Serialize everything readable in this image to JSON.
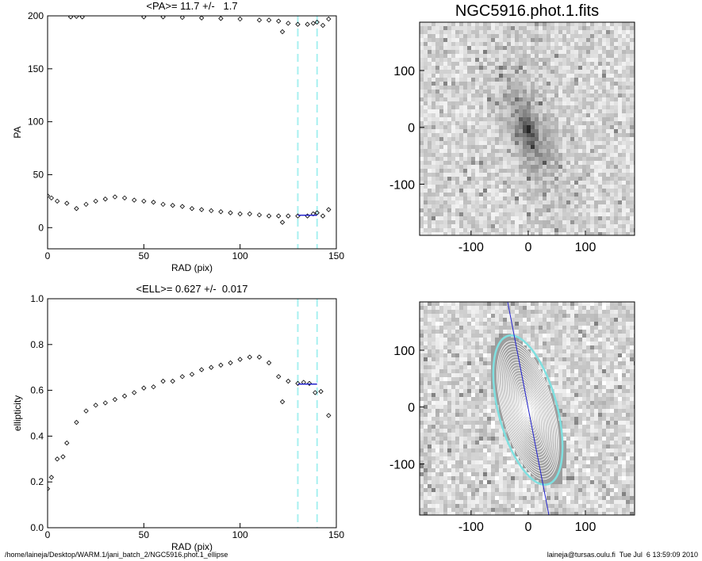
{
  "chart_data": [
    {
      "type": "scatter",
      "title": "<PA>= 11.7 +/-   1.7",
      "xlabel": "RAD (pix)",
      "ylabel": "PA",
      "x": [
        0,
        2,
        5,
        10,
        15,
        20,
        25,
        30,
        35,
        40,
        45,
        50,
        55,
        60,
        65,
        70,
        75,
        80,
        85,
        90,
        95,
        100,
        105,
        110,
        115,
        120,
        122,
        125,
        130,
        135,
        138,
        140,
        143,
        146,
        12,
        15,
        18,
        50,
        60,
        70,
        80,
        90,
        100,
        110,
        115,
        120,
        122,
        125,
        130,
        135,
        138,
        140,
        143,
        146
      ],
      "values": [
        30,
        28,
        25,
        23,
        18,
        22,
        25,
        27,
        29,
        28,
        26,
        25,
        24,
        22,
        21,
        20,
        18,
        17,
        16,
        15,
        14,
        13,
        13,
        12,
        11,
        11,
        5,
        11,
        11,
        11,
        13,
        14,
        11,
        17,
        199,
        199.5,
        199,
        199,
        199,
        198.5,
        198,
        197.5,
        197,
        196,
        196,
        195,
        185,
        193,
        192,
        192,
        193,
        194,
        191,
        197
      ],
      "color": "#000000",
      "xlim": [
        0,
        150
      ],
      "ylim": [
        -20,
        200
      ],
      "xticks": [
        0,
        50,
        100,
        150
      ],
      "yticks": [
        0,
        50,
        100,
        150,
        200
      ],
      "vlines": [
        130,
        140
      ],
      "vline_color": "#a8f0f0",
      "fit": {
        "x": [
          130,
          140
        ],
        "value": 11.7,
        "color": "#2222cc"
      }
    },
    {
      "type": "scatter",
      "title": "<ELL>= 0.627 +/-  0.017",
      "xlabel": "RAD (pix)",
      "ylabel": "ellipticity",
      "x": [
        0,
        2,
        5,
        8,
        10,
        15,
        20,
        25,
        30,
        35,
        40,
        45,
        50,
        55,
        60,
        65,
        70,
        75,
        80,
        85,
        90,
        95,
        100,
        105,
        110,
        115,
        120,
        122,
        125,
        130,
        133,
        136,
        139,
        142,
        146
      ],
      "values": [
        0.17,
        0.22,
        0.3,
        0.31,
        0.37,
        0.46,
        0.51,
        0.535,
        0.545,
        0.56,
        0.575,
        0.59,
        0.61,
        0.615,
        0.64,
        0.64,
        0.66,
        0.67,
        0.69,
        0.7,
        0.71,
        0.72,
        0.735,
        0.745,
        0.745,
        0.72,
        0.66,
        0.55,
        0.64,
        0.63,
        0.635,
        0.63,
        0.59,
        0.595,
        0.49
      ],
      "color": "#000000",
      "xlim": [
        0,
        150
      ],
      "ylim": [
        0,
        1
      ],
      "xticks": [
        0,
        50,
        100,
        150
      ],
      "yticks": [
        {
          "value": 0,
          "label": "0.0"
        },
        {
          "value": 0.2,
          "label": "0.2"
        },
        {
          "value": 0.4,
          "label": "0.4"
        },
        {
          "value": 0.6,
          "label": "0.6"
        },
        {
          "value": 0.8,
          "label": "0.8"
        },
        {
          "value": 1,
          "label": "1.0"
        }
      ],
      "vlines": [
        130,
        140
      ],
      "vline_color": "#a8f0f0",
      "fit": {
        "x": [
          130,
          140
        ],
        "value": 0.627,
        "color": "#2222cc"
      }
    },
    {
      "type": "image",
      "title": "NGC5916.phot.1.fits",
      "xlim": [
        -190,
        186
      ],
      "ylim": [
        -190,
        185
      ],
      "xticks": [
        -100,
        0,
        100
      ],
      "yticks": [
        -100,
        0,
        100
      ],
      "contours": false
    },
    {
      "type": "image",
      "xlim": [
        -190,
        186
      ],
      "ylim": [
        -190,
        185
      ],
      "xticks": [
        -100,
        0,
        100
      ],
      "yticks": [
        -100,
        0,
        100
      ],
      "contours": true
    }
  ],
  "footer": {
    "left": "/home/laineja/Desktop/WARM.1/jani_batch_2/NGC5916.phot.1_ellipse",
    "right": "laineja@tursas.oulu.fi  Tue Jul  6 13:59:09 2010"
  }
}
